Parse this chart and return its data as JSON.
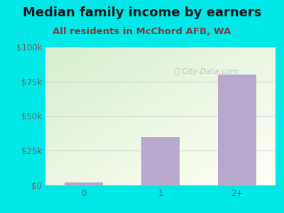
{
  "title": "Median family income by earners",
  "subtitle": "All residents in McChord AFB, WA",
  "categories": [
    "0",
    "1",
    "2+"
  ],
  "values": [
    2000,
    35000,
    80000
  ],
  "bar_color": "#b8a8cc",
  "outer_bg": "#00e8e8",
  "plot_bg_top_left": "#d8efd0",
  "plot_bg_bottom_right": "#f5fff5",
  "title_color": "#1a1a1a",
  "subtitle_color": "#7a4040",
  "tick_color": "#666666",
  "ylim": [
    0,
    100000
  ],
  "yticks": [
    0,
    25000,
    50000,
    75000,
    100000
  ],
  "ytick_labels": [
    "$0",
    "$25k",
    "$50k",
    "$75k",
    "$100k"
  ],
  "watermark": "City-Data.com",
  "title_fontsize": 13,
  "subtitle_fontsize": 9.5,
  "tick_fontsize": 8.5
}
